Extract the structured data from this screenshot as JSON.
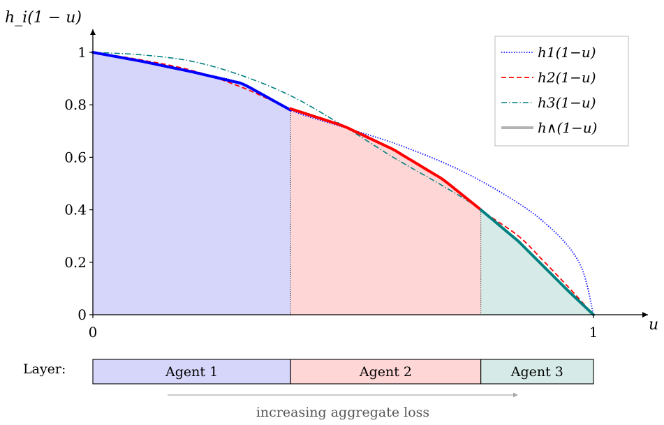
{
  "chart_data": {
    "type": "area",
    "xlabel": "u",
    "ylabel": "h_i(1 − u)",
    "xlim": [
      0,
      1
    ],
    "ylim": [
      0,
      1
    ],
    "x_ticks": [
      {
        "value": 0,
        "label": "0"
      },
      {
        "value": 1,
        "label": "1"
      }
    ],
    "y_ticks": [
      {
        "value": 0,
        "label": "0"
      },
      {
        "value": 0.2,
        "label": "0.2"
      },
      {
        "value": 0.4,
        "label": "0.4"
      },
      {
        "value": 0.6,
        "label": "0.6"
      },
      {
        "value": 0.8,
        "label": "0.8"
      },
      {
        "value": 1,
        "label": "1"
      }
    ],
    "legend_position": "top-right",
    "series": [
      {
        "name": "h1(1−u)",
        "style": "dotted",
        "color": "#0000ff",
        "x": [
          0,
          0.1,
          0.2,
          0.3,
          0.395,
          0.5,
          0.6,
          0.7,
          0.775,
          0.85,
          0.9,
          0.95,
          0.98,
          1
        ],
        "y": [
          1,
          0.965,
          0.925,
          0.88,
          0.78,
          0.715,
          0.655,
          0.58,
          0.51,
          0.425,
          0.355,
          0.26,
          0.16,
          0
        ]
      },
      {
        "name": "h2(1−u)",
        "style": "dashed",
        "color": "#ff0000",
        "x": [
          0,
          0.1,
          0.2,
          0.3,
          0.395,
          0.5,
          0.6,
          0.7,
          0.775,
          0.85,
          0.9,
          0.95,
          1
        ],
        "y": [
          1,
          0.97,
          0.93,
          0.865,
          0.785,
          0.72,
          0.63,
          0.515,
          0.4,
          0.3,
          0.205,
          0.105,
          0
        ]
      },
      {
        "name": "h3(1−u)",
        "style": "dashdot",
        "color": "#008080",
        "x": [
          0,
          0.1,
          0.2,
          0.3,
          0.4,
          0.5,
          0.6,
          0.7,
          0.775,
          0.85,
          0.9,
          0.95,
          1
        ],
        "y": [
          1,
          0.99,
          0.965,
          0.91,
          0.83,
          0.72,
          0.6,
          0.49,
          0.4,
          0.28,
          0.185,
          0.09,
          0
        ]
      },
      {
        "name": "h∧(1−u)",
        "style": "solid",
        "color": "#b3b3b3",
        "x": [
          0,
          0.395,
          0.775,
          1
        ],
        "y": [
          1,
          0.78,
          0.4,
          0
        ]
      }
    ],
    "regions": [
      {
        "label": "Agent 1",
        "x_start": 0,
        "x_end": 0.395,
        "fill": "#d6d6fa",
        "curve_color": "#0000ff"
      },
      {
        "label": "Agent 2",
        "x_start": 0.395,
        "x_end": 0.775,
        "fill": "#ffd6d6",
        "curve_color": "#ff0000"
      },
      {
        "label": "Agent 3",
        "x_start": 0.775,
        "x_end": 1,
        "fill": "#d6ebe8",
        "curve_color": "#008080"
      }
    ],
    "layer_label": "Layer:",
    "annotation": "increasing aggregate loss"
  }
}
